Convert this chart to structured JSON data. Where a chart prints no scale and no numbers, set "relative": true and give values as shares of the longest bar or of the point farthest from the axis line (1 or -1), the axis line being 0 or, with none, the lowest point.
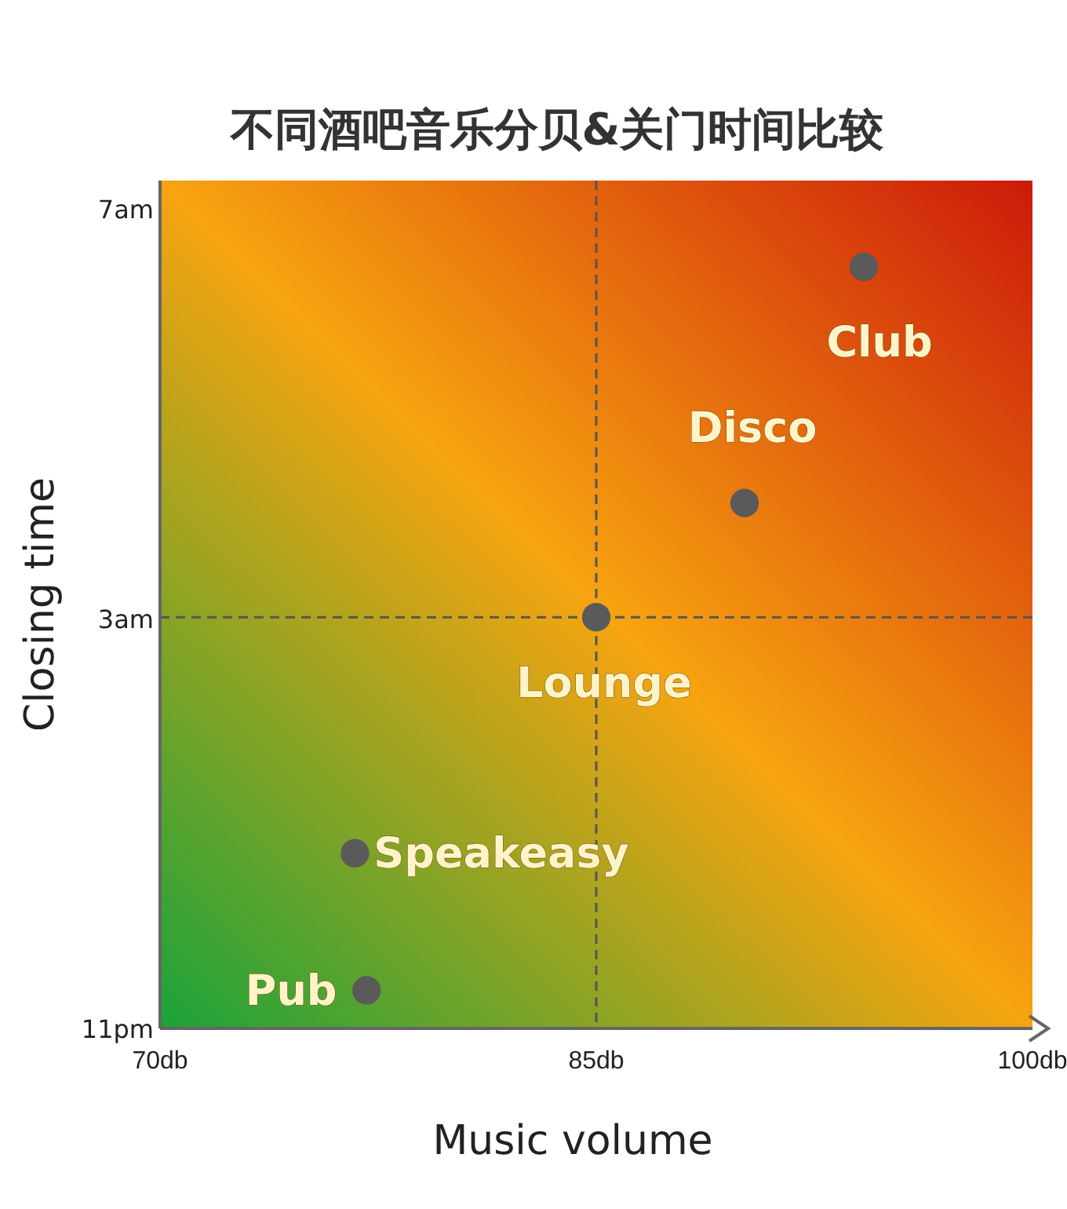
{
  "chart_data": {
    "type": "scatter",
    "title": "不同酒吧音乐分贝&关门时间比较",
    "xlabel": "Music volume",
    "ylabel": "Closing time",
    "relative": true,
    "x": [
      94.2,
      90.1,
      85,
      76.7,
      77.1
    ],
    "series": [
      {
        "color": "#5a5a5a",
        "values": [
          1,
          0.69,
          0.54,
          0.23,
          0.05
        ]
      }
    ],
    "marker": "circle",
    "xlim": [
      70,
      100
    ],
    "xticks": [
      {
        "value": 70,
        "label": "70db"
      },
      {
        "value": 85,
        "label": "85db"
      },
      {
        "value": 100,
        "label": "100db"
      }
    ],
    "ref_lines": [
      {
        "axis": "x",
        "value": 85,
        "color": "#555555",
        "line_style": "dashed"
      },
      {
        "axis": "y",
        "value": 0.54,
        "color": "#555555",
        "line_style": "dashed"
      }
    ],
    "annotations": [
      {
        "text": "Club",
        "x": 94.2,
        "y": 1
      },
      {
        "text": "Disco",
        "x": 90.1,
        "y": 0.69
      },
      {
        "text": "Lounge",
        "x": 85,
        "y": 0.54
      },
      {
        "text": "Speakeasy",
        "x": 76.7,
        "y": 0.23
      },
      {
        "text": "Pub",
        "x": 77.1,
        "y": 0.05
      },
      "11pm",
      "3am",
      "7am"
    ]
  }
}
